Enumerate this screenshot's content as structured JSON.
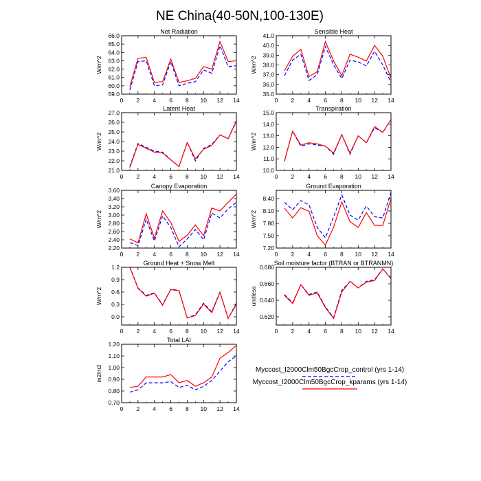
{
  "title": "NE China(40-50N,100-130E)",
  "colors": {
    "control": "#0000ff",
    "kparams": "#ff0000",
    "axis": "#000000"
  },
  "legend": {
    "placement": "bottom-right",
    "entries": [
      {
        "label": "Myccost_I2000Clm50BgcCrop_control (yrs 1-14)",
        "color": "#0000ff",
        "dash": "dashed"
      },
      {
        "label": "Myccost_I2000Clm50BgcCrop_kparams (yrs 1-14)",
        "color": "#ff0000",
        "dash": "solid"
      }
    ]
  },
  "chart_data": [
    {
      "type": "line",
      "title": "Net Radiation",
      "ylabel": "W/m^2",
      "xlim": [
        0,
        14
      ],
      "ylim": [
        59.0,
        66.0
      ],
      "xticks": [
        0,
        2,
        4,
        6,
        8,
        10,
        12,
        14
      ],
      "xtick_labels": [
        "0",
        "2",
        "4",
        "6",
        "8",
        "10",
        "12",
        "14"
      ],
      "yticks": [
        59,
        60,
        61,
        62,
        63,
        64,
        65,
        66
      ],
      "ytick_labels": [
        "59.0",
        "60.0",
        "61.0",
        "62.0",
        "63.0",
        "64.0",
        "65.0",
        "66.0"
      ],
      "x": [
        1,
        2,
        3,
        4,
        5,
        6,
        7,
        8,
        9,
        10,
        11,
        12,
        13,
        14
      ],
      "series": [
        {
          "name": "Myccost_I2000Clm50BgcCrop_control (yrs 1-14)",
          "values": [
            59.5,
            62.9,
            63.0,
            60.0,
            60.1,
            62.9,
            60.0,
            60.3,
            60.5,
            61.9,
            61.5,
            64.8,
            62.3,
            62.4
          ]
        },
        {
          "name": "Myccost_I2000Clm50BgcCrop_kparams (yrs 1-14)",
          "values": [
            59.9,
            63.3,
            63.4,
            60.4,
            60.5,
            63.2,
            60.4,
            60.6,
            60.9,
            62.3,
            62.0,
            65.3,
            62.9,
            63.0
          ]
        }
      ]
    },
    {
      "type": "line",
      "title": "Sensible Heat",
      "ylabel": "W/m^2",
      "xlim": [
        0,
        14
      ],
      "ylim": [
        35.0,
        41.0
      ],
      "xticks": [
        0,
        2,
        4,
        6,
        8,
        10,
        12,
        14
      ],
      "xtick_labels": [
        "0",
        "2",
        "4",
        "6",
        "8",
        "10",
        "12",
        "14"
      ],
      "yticks": [
        35,
        36,
        37,
        38,
        39,
        40,
        41
      ],
      "ytick_labels": [
        "35.0",
        "36.0",
        "37.0",
        "38.0",
        "39.0",
        "40.0",
        "41.0"
      ],
      "x": [
        1,
        2,
        3,
        4,
        5,
        6,
        7,
        8,
        9,
        10,
        11,
        12,
        13,
        14
      ],
      "series": [
        {
          "name": "Myccost_I2000Clm50BgcCrop_control (yrs 1-14)",
          "values": [
            36.9,
            38.5,
            39.1,
            36.4,
            37.0,
            39.9,
            38.0,
            36.6,
            38.5,
            38.3,
            37.9,
            39.4,
            38.0,
            36.2
          ]
        },
        {
          "name": "Myccost_I2000Clm50BgcCrop_kparams (yrs 1-14)",
          "values": [
            37.4,
            38.9,
            39.6,
            36.8,
            37.3,
            40.4,
            38.4,
            36.9,
            39.1,
            38.8,
            38.4,
            40.0,
            38.9,
            36.6
          ]
        }
      ]
    },
    {
      "type": "line",
      "title": "Latent Heat",
      "ylabel": "W/m^2",
      "xlim": [
        0,
        14
      ],
      "ylim": [
        21.0,
        27.0
      ],
      "xticks": [
        0,
        2,
        4,
        6,
        8,
        10,
        12,
        14
      ],
      "xtick_labels": [
        "0",
        "2",
        "4",
        "6",
        "8",
        "10",
        "12",
        "14"
      ],
      "yticks": [
        21,
        22,
        23,
        24,
        25,
        26,
        27
      ],
      "ytick_labels": [
        "21.0",
        "22.0",
        "23.0",
        "24.0",
        "25.0",
        "26.0",
        "27.0"
      ],
      "x": [
        1,
        2,
        3,
        4,
        5,
        6,
        7,
        8,
        9,
        10,
        11,
        12,
        13,
        14
      ],
      "series": [
        {
          "name": "Myccost_I2000Clm50BgcCrop_control (yrs 1-14)",
          "values": [
            21.4,
            23.8,
            23.4,
            23.0,
            22.9,
            22.1,
            21.4,
            23.9,
            22.0,
            23.3,
            23.7,
            24.7,
            24.3,
            26.2
          ]
        },
        {
          "name": "Myccost_I2000Clm50BgcCrop_kparams (yrs 1-14)",
          "values": [
            21.3,
            23.7,
            23.3,
            22.9,
            22.8,
            22.1,
            21.4,
            23.9,
            22.2,
            23.2,
            23.6,
            24.7,
            24.3,
            26.1
          ]
        }
      ]
    },
    {
      "type": "line",
      "title": "Transpiration",
      "ylabel": "W/m^2",
      "xlim": [
        0,
        14
      ],
      "ylim": [
        10.0,
        15.0
      ],
      "xticks": [
        0,
        2,
        4,
        6,
        8,
        10,
        12,
        14
      ],
      "xtick_labels": [
        "0",
        "2",
        "4",
        "6",
        "8",
        "10",
        "12",
        "14"
      ],
      "yticks": [
        10,
        11,
        12,
        13,
        14,
        15
      ],
      "ytick_labels": [
        "10.0",
        "11.0",
        "12.0",
        "13.0",
        "14.0",
        "15.0"
      ],
      "x": [
        1,
        2,
        3,
        4,
        5,
        6,
        7,
        8,
        9,
        10,
        11,
        12,
        13,
        14
      ],
      "series": [
        {
          "name": "Myccost_I2000Clm50BgcCrop_control (yrs 1-14)",
          "values": [
            10.8,
            13.4,
            12.1,
            12.3,
            12.2,
            12.1,
            11.4,
            13.1,
            11.4,
            13.0,
            12.4,
            13.7,
            13.3,
            14.4
          ]
        },
        {
          "name": "Myccost_I2000Clm50BgcCrop_kparams (yrs 1-14)",
          "values": [
            10.8,
            13.4,
            12.2,
            12.4,
            12.3,
            12.1,
            11.5,
            13.1,
            11.5,
            13.0,
            12.4,
            13.8,
            13.3,
            14.4
          ]
        }
      ]
    },
    {
      "type": "line",
      "title": "Canopy Evaporation",
      "ylabel": "W/m^2",
      "xlim": [
        0,
        14
      ],
      "ylim": [
        2.2,
        3.6
      ],
      "xticks": [
        0,
        2,
        4,
        6,
        8,
        10,
        12,
        14
      ],
      "xtick_labels": [
        "0",
        "2",
        "4",
        "6",
        "8",
        "10",
        "12",
        "14"
      ],
      "yticks": [
        2.2,
        2.4,
        2.6,
        2.8,
        3.0,
        3.2,
        3.4,
        3.6
      ],
      "ytick_labels": [
        "2.20",
        "2.40",
        "2.60",
        "2.80",
        "3.00",
        "3.20",
        "3.40",
        "3.60"
      ],
      "x": [
        1,
        2,
        3,
        4,
        5,
        6,
        7,
        8,
        9,
        10,
        11,
        12,
        13,
        14
      ],
      "series": [
        {
          "name": "Myccost_I2000Clm50BgcCrop_control (yrs 1-14)",
          "values": [
            2.33,
            2.26,
            2.9,
            2.37,
            2.98,
            2.7,
            2.23,
            2.42,
            2.65,
            2.4,
            3.05,
            2.93,
            3.15,
            3.31
          ]
        },
        {
          "name": "Myccost_I2000Clm50BgcCrop_kparams (yrs 1-14)",
          "values": [
            2.42,
            2.33,
            3.03,
            2.44,
            3.1,
            2.82,
            2.36,
            2.51,
            2.76,
            2.5,
            3.17,
            3.1,
            3.31,
            3.51
          ]
        }
      ]
    },
    {
      "type": "line",
      "title": "Ground Evaporation",
      "ylabel": "W/m^2",
      "xlim": [
        0,
        14
      ],
      "ylim": [
        7.2,
        8.6
      ],
      "xticks": [
        0,
        2,
        4,
        6,
        8,
        10,
        12,
        14
      ],
      "xtick_labels": [
        "0",
        "2",
        "4",
        "6",
        "8",
        "10",
        "12",
        "14"
      ],
      "yticks": [
        7.2,
        7.5,
        7.8,
        8.1,
        8.4
      ],
      "ytick_labels": [
        "7.20",
        "7.50",
        "7.80",
        "8.10",
        "8.40"
      ],
      "x": [
        1,
        2,
        3,
        4,
        5,
        6,
        7,
        8,
        9,
        10,
        11,
        12,
        13,
        14
      ],
      "series": [
        {
          "name": "Myccost_I2000Clm50BgcCrop_control (yrs 1-14)",
          "values": [
            8.31,
            8.13,
            8.35,
            8.25,
            7.7,
            7.45,
            7.96,
            8.49,
            8.0,
            7.88,
            8.22,
            7.96,
            7.93,
            8.55
          ]
        },
        {
          "name": "Myccost_I2000Clm50BgcCrop_kparams (yrs 1-14)",
          "values": [
            8.17,
            7.93,
            8.18,
            8.09,
            7.5,
            7.27,
            7.71,
            8.32,
            7.84,
            7.7,
            8.06,
            7.75,
            7.75,
            8.4
          ]
        }
      ]
    },
    {
      "type": "line",
      "title": "Ground Heat + Snow Melt",
      "ylabel": "W/m^2",
      "xlim": [
        0,
        14
      ],
      "ylim": [
        -0.2,
        1.2
      ],
      "xticks": [
        0,
        2,
        4,
        6,
        8,
        10,
        12,
        14
      ],
      "xtick_labels": [
        "0",
        "2",
        "4",
        "6",
        "8",
        "10",
        "12",
        "14"
      ],
      "yticks": [
        0.0,
        0.3,
        0.6,
        0.9,
        1.2
      ],
      "ytick_labels": [
        "0.0",
        "0.3",
        "0.6",
        "0.9",
        "1.2"
      ],
      "x": [
        1,
        2,
        3,
        4,
        5,
        6,
        7,
        8,
        9,
        10,
        11,
        12,
        13,
        14
      ],
      "series": [
        {
          "name": "Myccost_I2000Clm50BgcCrop_control (yrs 1-14)",
          "values": [
            1.21,
            0.7,
            0.52,
            0.58,
            0.29,
            0.67,
            0.64,
            -0.03,
            0.05,
            0.33,
            0.12,
            0.6,
            -0.04,
            0.33
          ]
        },
        {
          "name": "Myccost_I2000Clm50BgcCrop_kparams (yrs 1-14)",
          "values": [
            1.2,
            0.69,
            0.5,
            0.57,
            0.28,
            0.66,
            0.63,
            -0.03,
            0.03,
            0.31,
            0.1,
            0.59,
            -0.04,
            0.3
          ]
        }
      ]
    },
    {
      "type": "line",
      "title": "Soil moisture factor (BTRAN or BTRANMN)",
      "ylabel": "unitless",
      "xlim": [
        0,
        14
      ],
      "ylim": [
        0.61,
        0.68
      ],
      "xticks": [
        0,
        2,
        4,
        6,
        8,
        10,
        12,
        14
      ],
      "xtick_labels": [
        "0",
        "2",
        "4",
        "6",
        "8",
        "10",
        "12",
        "14"
      ],
      "yticks": [
        0.62,
        0.64,
        0.66,
        0.68
      ],
      "ytick_labels": [
        "0.620",
        "0.640",
        "0.660",
        "0.680"
      ],
      "x": [
        1,
        2,
        3,
        4,
        5,
        6,
        7,
        8,
        9,
        10,
        11,
        12,
        13,
        14
      ],
      "series": [
        {
          "name": "Myccost_I2000Clm50BgcCrop_control (yrs 1-14)",
          "values": [
            0.647,
            0.637,
            0.659,
            0.647,
            0.65,
            0.632,
            0.619,
            0.652,
            0.663,
            0.655,
            0.663,
            0.665,
            0.678,
            0.667
          ]
        },
        {
          "name": "Myccost_I2000Clm50BgcCrop_kparams (yrs 1-14)",
          "values": [
            0.646,
            0.636,
            0.659,
            0.646,
            0.649,
            0.631,
            0.618,
            0.65,
            0.663,
            0.655,
            0.662,
            0.664,
            0.678,
            0.666
          ]
        }
      ]
    },
    {
      "type": "line",
      "title": "Total LAI",
      "ylabel": "m2/m2",
      "xlim": [
        0,
        14
      ],
      "ylim": [
        0.7,
        1.2
      ],
      "xticks": [
        0,
        2,
        4,
        6,
        8,
        10,
        12,
        14
      ],
      "xtick_labels": [
        "0",
        "2",
        "4",
        "6",
        "8",
        "10",
        "12",
        "14"
      ],
      "yticks": [
        0.7,
        0.8,
        0.9,
        1.0,
        1.1,
        1.2
      ],
      "ytick_labels": [
        "0.70",
        "0.80",
        "0.90",
        "1.00",
        "1.10",
        "1.20"
      ],
      "x": [
        1,
        2,
        3,
        4,
        5,
        6,
        7,
        8,
        9,
        10,
        11,
        12,
        13,
        14
      ],
      "series": [
        {
          "name": "Myccost_I2000Clm50BgcCrop_control (yrs 1-14)",
          "values": [
            0.79,
            0.81,
            0.87,
            0.87,
            0.87,
            0.88,
            0.83,
            0.85,
            0.81,
            0.84,
            0.89,
            0.97,
            1.05,
            1.1
          ]
        },
        {
          "name": "Myccost_I2000Clm50BgcCrop_kparams (yrs 1-14)",
          "values": [
            0.83,
            0.84,
            0.92,
            0.92,
            0.92,
            0.94,
            0.87,
            0.89,
            0.84,
            0.87,
            0.92,
            1.08,
            1.13,
            1.19
          ]
        }
      ]
    }
  ]
}
